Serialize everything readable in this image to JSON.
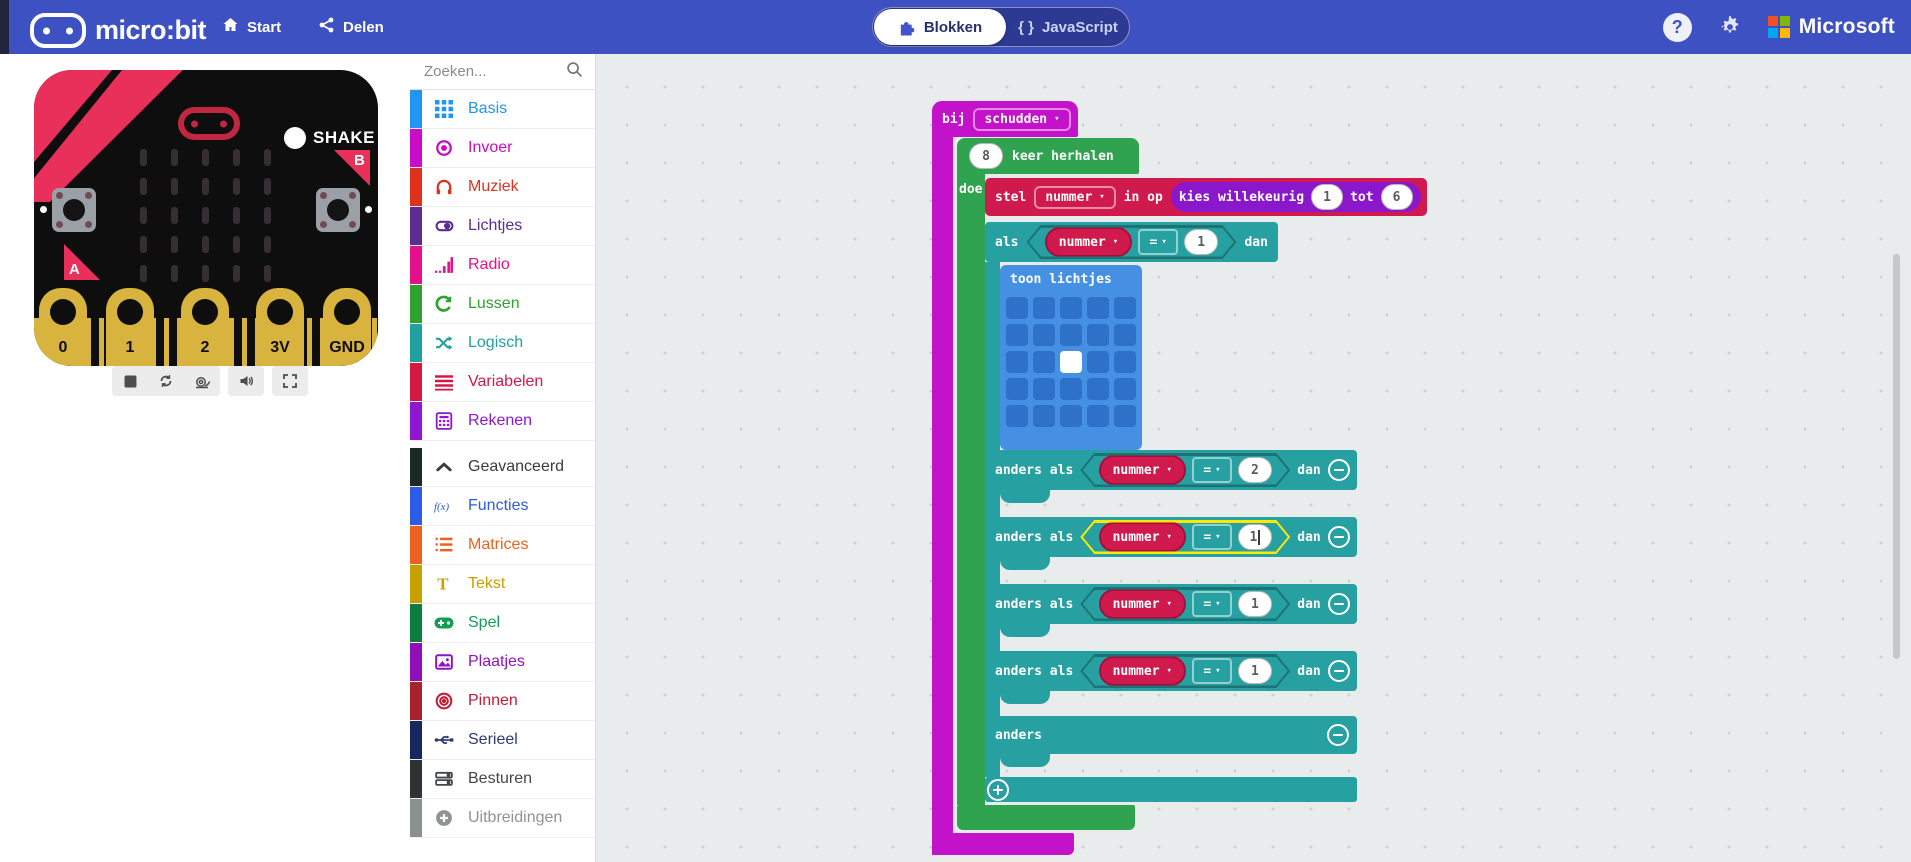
{
  "header": {
    "logo_text": "micro:bit",
    "nav_start": "Start",
    "nav_share": "Delen",
    "tab_blocks": "Blokken",
    "tab_javascript": "JavaScript",
    "javascript_glyph": "{ }",
    "help_glyph": "?",
    "brand": "Microsoft",
    "colors": {
      "bar": "#3d51c3",
      "ms_red": "#f25022",
      "ms_green": "#7fba00",
      "ms_blue": "#00a4ef",
      "ms_yellow": "#ffb900"
    }
  },
  "simulator": {
    "shake_label": "SHAKE",
    "button_a_label": "A",
    "button_b_label": "B",
    "pins": [
      "0",
      "1",
      "2",
      "3V",
      "GND"
    ],
    "colors": {
      "board": "#0e0e0e",
      "accent": "#e8305a",
      "gold": "#d8b33d"
    }
  },
  "toolbox": {
    "search_placeholder": "Zoeken...",
    "categories": [
      {
        "label": "Basis",
        "color": "#2095f2"
      },
      {
        "label": "Invoer",
        "color": "#c80cc8"
      },
      {
        "label": "Muziek",
        "color": "#e0301e"
      },
      {
        "label": "Lichtjes",
        "color": "#5c2d91"
      },
      {
        "label": "Radio",
        "color": "#e3128c"
      },
      {
        "label": "Lussen",
        "color": "#30a130"
      },
      {
        "label": "Logisch",
        "color": "#21a0a0"
      },
      {
        "label": "Variabelen",
        "color": "#d41844"
      },
      {
        "label": "Rekenen",
        "color": "#8f17d2"
      }
    ],
    "advanced": [
      {
        "label": "Geavanceerd",
        "bar": "#1c2a25",
        "text": "#3b3b3b"
      },
      {
        "label": "Functies",
        "bar": "#2d5be8",
        "text": "#2d5be8"
      },
      {
        "label": "Matrices",
        "bar": "#ed6120",
        "text": "#ed6120"
      },
      {
        "label": "Tekst",
        "bar": "#c7a000",
        "text": "#c7a000"
      },
      {
        "label": "Spel",
        "bar": "#0c7c3f",
        "text": "#109e52"
      },
      {
        "label": "Plaatjes",
        "bar": "#8d0fb5",
        "text": "#9210c6"
      },
      {
        "label": "Pinnen",
        "bar": "#a8232c",
        "text": "#c31a33"
      },
      {
        "label": "Serieel",
        "bar": "#16295f",
        "text": "#2b3a72"
      },
      {
        "label": "Besturen",
        "bar": "#2f3336",
        "text": "#43474a"
      },
      {
        "label": "Uitbreidingen",
        "bar": "#8a8f90",
        "text": "#8e9496"
      }
    ]
  },
  "workspace": {
    "colors": {
      "bg": "#e8eced",
      "magenta": "#c312c9",
      "green": "#2fa34f",
      "red": "#d01a4d",
      "purple": "#8b17cd",
      "teal": "#27a0a2",
      "blue": "#4590e2",
      "blue_cell": "#2d72c8",
      "highlight": "#fde903"
    },
    "blocks": {
      "on_shake": {
        "label": "bij",
        "dropdown": "schudden"
      },
      "repeat": {
        "count": "8",
        "label": "keer herhalen",
        "do_label": "doe"
      },
      "set_var": {
        "label_set": "stel",
        "variable": "nummer",
        "label_to": "in op",
        "random": {
          "label": "kies willekeurig",
          "from": "1",
          "label_tot": "tot",
          "to": "6"
        }
      },
      "if": {
        "label_if": "als",
        "label_then": "dan",
        "label_elseif": "anders als",
        "label_else": "anders",
        "variable": "nummer",
        "operator": "=",
        "value": "1"
      },
      "show_leds": {
        "label": "toon lichtjes",
        "grid": [
          [
            0,
            0,
            0,
            0,
            0
          ],
          [
            0,
            0,
            0,
            0,
            0
          ],
          [
            0,
            0,
            1,
            0,
            0
          ],
          [
            0,
            0,
            0,
            0,
            0
          ],
          [
            0,
            0,
            0,
            0,
            0
          ]
        ]
      },
      "elseifs": [
        {
          "variable": "nummer",
          "operator": "=",
          "value": "2",
          "editing": false
        },
        {
          "variable": "nummer",
          "operator": "=",
          "value": "1",
          "editing": true
        },
        {
          "variable": "nummer",
          "operator": "=",
          "value": "1",
          "editing": false
        },
        {
          "variable": "nummer",
          "operator": "=",
          "value": "1",
          "editing": false
        }
      ]
    }
  },
  "icons": {
    "caret_down": "▾"
  }
}
